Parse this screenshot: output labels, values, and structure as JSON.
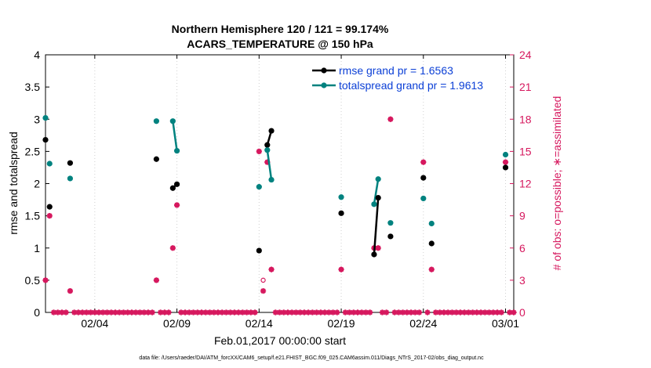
{
  "chart_data": {
    "type": "scatter",
    "title_line1": "Northern Hemisphere 120 / 121 = 99.174%",
    "title_line2": "ACARS_TEMPERATURE @ 150 hPa",
    "xlabel": "Feb.01,2017 00:00:00 start",
    "ylabel_left": "rmse and totalspread",
    "ylabel_right": "# of obs: o=possible; ∗=assimilated",
    "xlim": [
      0.0,
      28.5
    ],
    "ylim_left": [
      0,
      4
    ],
    "ylim_right": [
      0,
      24
    ],
    "x_ticks": [
      {
        "value": 3,
        "label": "02/04"
      },
      {
        "value": 8,
        "label": "02/09"
      },
      {
        "value": 13,
        "label": "02/14"
      },
      {
        "value": 18,
        "label": "02/19"
      },
      {
        "value": 23,
        "label": "02/24"
      },
      {
        "value": 28,
        "label": "03/01"
      }
    ],
    "y_ticks_left": [
      {
        "value": 0,
        "label": "0"
      },
      {
        "value": 0.5,
        "label": "0.5"
      },
      {
        "value": 1,
        "label": "1"
      },
      {
        "value": 1.5,
        "label": "1.5"
      },
      {
        "value": 2,
        "label": "2"
      },
      {
        "value": 2.5,
        "label": "2.5"
      },
      {
        "value": 3,
        "label": "3"
      },
      {
        "value": 3.5,
        "label": "3.5"
      },
      {
        "value": 4,
        "label": "4"
      }
    ],
    "y_ticks_right": [
      {
        "value": 0,
        "label": "0"
      },
      {
        "value": 3,
        "label": "3"
      },
      {
        "value": 6,
        "label": "6"
      },
      {
        "value": 9,
        "label": "9"
      },
      {
        "value": 12,
        "label": "12"
      },
      {
        "value": 15,
        "label": "15"
      },
      {
        "value": 18,
        "label": "18"
      },
      {
        "value": 21,
        "label": "21"
      },
      {
        "value": 24,
        "label": "24"
      }
    ],
    "series": [
      {
        "name": "rmse grand pr = 1.6563",
        "color": "#000000",
        "points": [
          [
            0.0,
            2.68
          ],
          [
            0.25,
            1.64
          ],
          [
            1.5,
            2.32
          ],
          [
            6.75,
            2.38
          ],
          [
            7.75,
            1.93
          ],
          [
            8.0,
            1.99
          ],
          [
            13.0,
            0.96
          ],
          [
            13.5,
            2.6
          ],
          [
            13.75,
            2.82
          ],
          [
            18.0,
            1.54
          ],
          [
            20.0,
            0.9
          ],
          [
            20.25,
            1.78
          ],
          [
            21.0,
            1.18
          ],
          [
            23.0,
            2.09
          ],
          [
            23.5,
            1.07
          ],
          [
            28.0,
            2.25
          ]
        ],
        "lines": [
          [
            [
              7.75,
              1.93
            ],
            [
              8.0,
              1.99
            ]
          ],
          [
            [
              13.5,
              2.6
            ],
            [
              13.75,
              2.82
            ]
          ],
          [
            [
              20.0,
              0.9
            ],
            [
              20.25,
              1.78
            ]
          ]
        ]
      },
      {
        "name": "totalspread grand pr = 1.9613",
        "color": "#00827f",
        "points": [
          [
            0.0,
            3.02
          ],
          [
            0.25,
            2.31
          ],
          [
            1.5,
            2.08
          ],
          [
            6.75,
            2.97
          ],
          [
            7.75,
            2.97
          ],
          [
            8.0,
            2.51
          ],
          [
            13.0,
            1.95
          ],
          [
            13.5,
            2.52
          ],
          [
            13.75,
            2.06
          ],
          [
            18.0,
            1.79
          ],
          [
            20.0,
            1.68
          ],
          [
            20.25,
            2.07
          ],
          [
            21.0,
            1.39
          ],
          [
            23.0,
            1.77
          ],
          [
            23.5,
            1.38
          ],
          [
            28.0,
            2.45
          ]
        ],
        "lines": [
          [
            [
              7.75,
              2.97
            ],
            [
              8.0,
              2.51
            ]
          ],
          [
            [
              13.5,
              2.52
            ],
            [
              13.75,
              2.06
            ]
          ],
          [
            [
              20.0,
              1.68
            ],
            [
              20.25,
              2.07
            ]
          ]
        ]
      }
    ],
    "obs_color": "#d6185e",
    "obs_possible": [
      [
        0.0,
        3
      ],
      [
        0.25,
        9
      ],
      [
        1.5,
        2
      ],
      [
        6.75,
        3
      ],
      [
        7.75,
        6
      ],
      [
        8.0,
        10
      ],
      [
        13.0,
        15
      ],
      [
        13.25,
        3
      ],
      [
        13.5,
        14
      ],
      [
        13.75,
        4
      ],
      [
        18.0,
        4
      ],
      [
        20.0,
        6
      ],
      [
        20.25,
        6
      ],
      [
        21.0,
        18
      ],
      [
        23.0,
        14
      ],
      [
        23.5,
        4
      ],
      [
        28.0,
        14
      ]
    ],
    "obs_assimilated": [
      [
        0.0,
        3
      ],
      [
        0.25,
        9
      ],
      [
        1.5,
        2
      ],
      [
        6.75,
        3
      ],
      [
        7.75,
        6
      ],
      [
        8.0,
        10
      ],
      [
        13.0,
        15
      ],
      [
        13.25,
        2
      ],
      [
        13.5,
        14
      ],
      [
        13.75,
        4
      ],
      [
        18.0,
        4
      ],
      [
        20.0,
        6
      ],
      [
        20.25,
        6
      ],
      [
        21.0,
        18
      ],
      [
        23.0,
        14
      ],
      [
        23.5,
        4
      ],
      [
        28.0,
        14
      ]
    ],
    "zero_obs_x_start": 0.0,
    "zero_obs_x_end": 28.5,
    "zero_obs_step": 0.25,
    "legend": [
      {
        "label": "rmse grand pr = 1.6563",
        "color": "#000000"
      },
      {
        "label": "totalspread grand pr = 1.9613",
        "color": "#00827f"
      }
    ],
    "legend_position": "top-right"
  },
  "footer_text": "data file: /Users/raeder/DAI/ATM_forcXX/CAM6_setup/f.e21.FHIST_BGC.f09_025.CAM6assim.011/Diags_NTrS_2017-02/obs_diag_output.nc"
}
